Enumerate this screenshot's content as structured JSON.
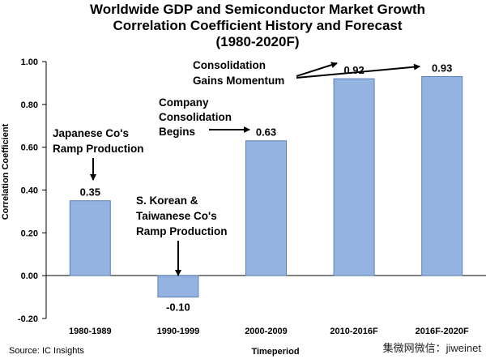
{
  "chart_data": {
    "type": "bar",
    "title_lines": [
      "Worldwide GDP and Semiconductor  Market Growth",
      "Correlation Coefficient History and Forecast",
      "(1980-2020F)"
    ],
    "categories": [
      "1980-1989",
      "1990-1999",
      "2000-2009",
      "2010-2016F",
      "2016F-2020F"
    ],
    "values": [
      0.35,
      -0.1,
      0.63,
      0.92,
      0.93
    ],
    "value_labels": [
      "0.35",
      "-0.10",
      "0.63",
      "0.92",
      "0.93"
    ],
    "xlabel": "Timeperiod",
    "ylabel": "Correlation Coefficient",
    "ylim": [
      -0.2,
      1.0
    ],
    "yticks": [
      1.0,
      0.8,
      0.6,
      0.4,
      0.2,
      0.0,
      -0.2
    ],
    "ytick_labels": [
      "1.00",
      "0.80",
      "0.60",
      "0.40",
      "0.20",
      "0.00",
      "-0.20"
    ],
    "grid": false,
    "bar_color": "#95b3e0",
    "bar_edge_color": "#5b7fb8",
    "annotations": [
      {
        "lines": [
          "Japanese Co's",
          "Ramp Production"
        ]
      },
      {
        "lines": [
          "S. Korean &",
          "Taiwanese Co's",
          "Ramp Production"
        ]
      },
      {
        "lines": [
          "Company",
          "Consolidation",
          "Begins"
        ]
      },
      {
        "lines": [
          "Consolidation",
          "Gains Momentum"
        ]
      }
    ]
  },
  "source": "Source: IC Insights",
  "watermark": "集微网微信：jiweinet"
}
